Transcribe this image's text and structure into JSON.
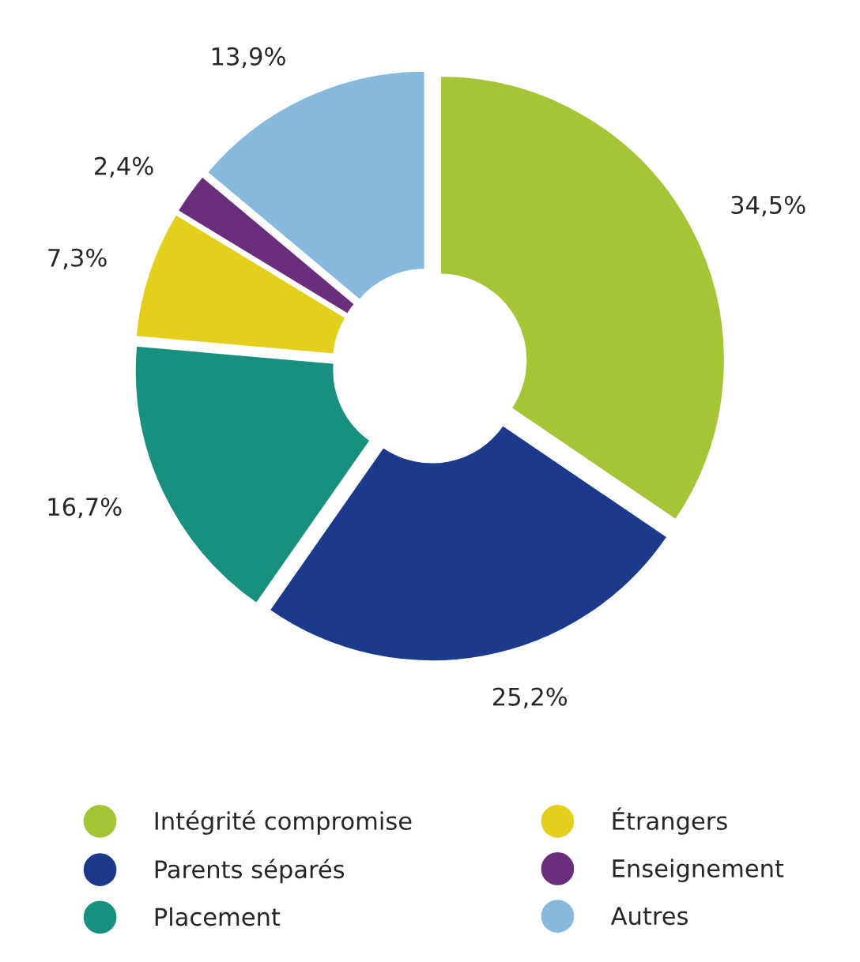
{
  "chart_data": {
    "type": "donut",
    "categories": [
      "Intégrité compromise",
      "Parents séparés",
      "Placement",
      "Étrangers",
      "Enseignement",
      "Autres"
    ],
    "values": [
      34.5,
      25.2,
      16.7,
      7.3,
      2.4,
      13.9
    ],
    "value_labels": [
      "34,5%",
      "25,2%",
      "16,7%",
      "7,3%",
      "2,4%",
      "13,9%"
    ],
    "colors": [
      "#a6c536",
      "#1c3a8c",
      "#17907e",
      "#e3cf1c",
      "#6b2e7c",
      "#86b9dd"
    ],
    "legend": "bottom"
  }
}
